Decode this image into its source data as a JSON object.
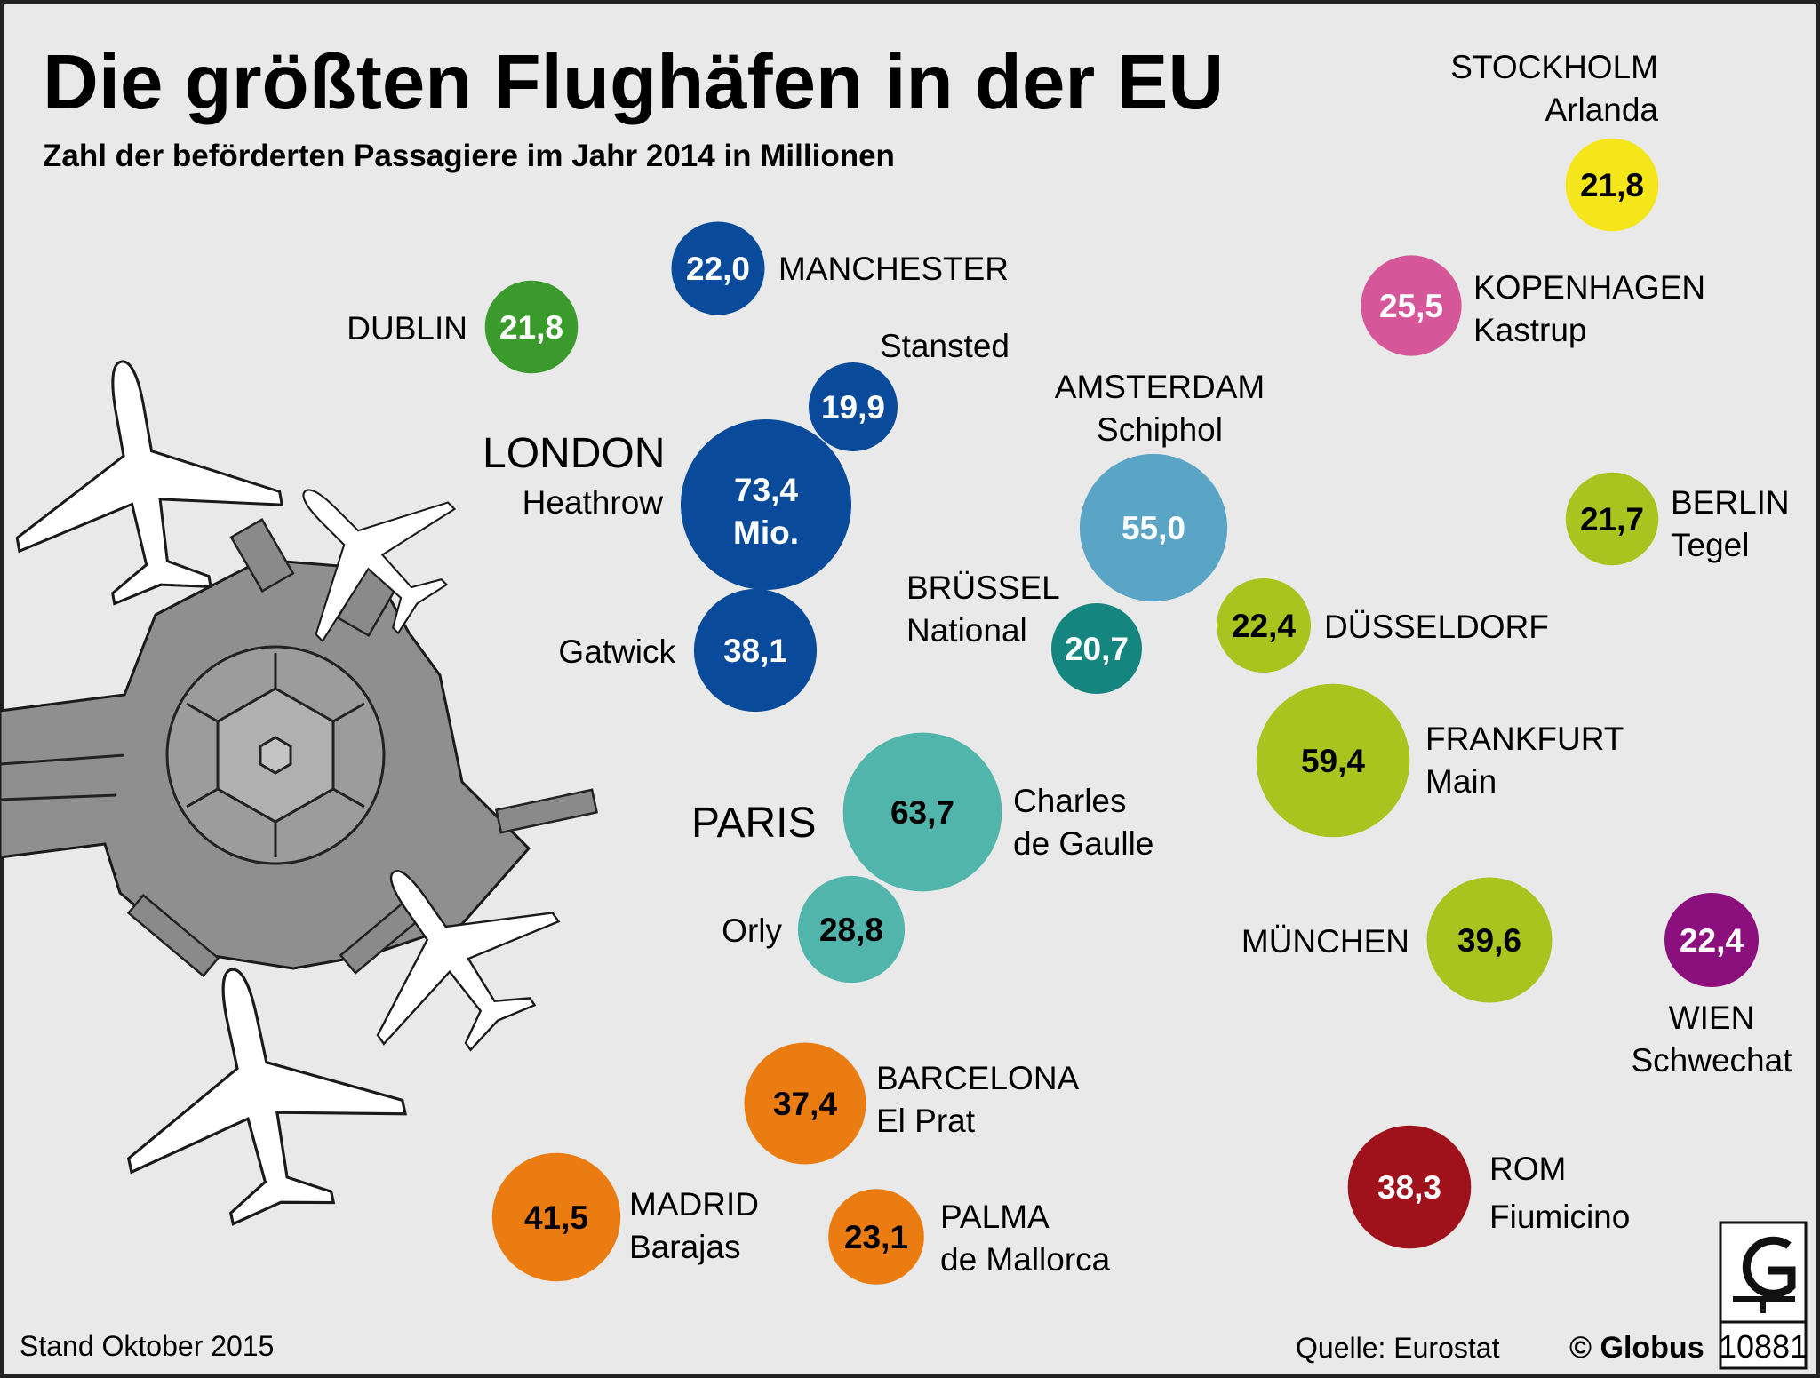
{
  "title": "Die größten Flughäfen in der EU",
  "subtitle": "Zahl der beförderten Passagiere im Jahr 2014 in Millionen",
  "footer": {
    "stand": "Stand Oktober 2015",
    "source": "Quelle: Eurostat",
    "publisher": "© Globus",
    "number": "10881"
  },
  "logo_icon": "globus-logo-icon",
  "chart_data": {
    "type": "bubble",
    "title": "Die größten Flughäfen in der EU",
    "subtitle": "Zahl der beförderten Passagiere im Jahr 2014 in Millionen",
    "unit": "Millionen Passagiere",
    "city_headings": [
      "LONDON",
      "PARIS"
    ],
    "airports": [
      {
        "id": "stockholm",
        "value": 21.8,
        "value_label": "21,8",
        "lines": [
          "STOCKHOLM",
          "Arlanda"
        ],
        "color": "#f5e61c",
        "text_color": "#000000"
      },
      {
        "id": "kopenhagen",
        "value": 25.5,
        "value_label": "25,5",
        "lines": [
          "KOPENHAGEN",
          "Kastrup"
        ],
        "color": "#d6569a",
        "text_color": "#ffffff"
      },
      {
        "id": "manchester",
        "value": 22.0,
        "value_label": "22,0",
        "lines": [
          "MANCHESTER"
        ],
        "color": "#0a4a9b",
        "text_color": "#ffffff"
      },
      {
        "id": "dublin",
        "value": 21.8,
        "value_label": "21,8",
        "lines": [
          "DUBLIN"
        ],
        "color": "#3a9a2c",
        "text_color": "#ffffff"
      },
      {
        "id": "stansted",
        "value": 19.9,
        "value_label": "19,9",
        "lines": [
          "Stansted"
        ],
        "color": "#0a4a9b",
        "text_color": "#ffffff"
      },
      {
        "id": "heathrow",
        "value": 73.4,
        "value_label": "73,4",
        "extra_label": "Mio.",
        "lines": [
          "Heathrow"
        ],
        "color": "#0a4a9b",
        "text_color": "#ffffff"
      },
      {
        "id": "gatwick",
        "value": 38.1,
        "value_label": "38,1",
        "lines": [
          "Gatwick"
        ],
        "color": "#0a4a9b",
        "text_color": "#ffffff"
      },
      {
        "id": "amsterdam",
        "value": 55.0,
        "value_label": "55,0",
        "lines": [
          "AMSTERDAM",
          "Schiphol"
        ],
        "color": "#5aa4c6",
        "text_color": "#ffffff"
      },
      {
        "id": "bruessel",
        "value": 20.7,
        "value_label": "20,7",
        "lines": [
          "BRÜSSEL",
          "National"
        ],
        "color": "#14867f",
        "text_color": "#ffffff"
      },
      {
        "id": "berlin",
        "value": 21.7,
        "value_label": "21,7",
        "lines": [
          "BERLIN",
          "Tegel"
        ],
        "color": "#a9c41f",
        "text_color": "#000000"
      },
      {
        "id": "duesseldorf",
        "value": 22.4,
        "value_label": "22,4",
        "lines": [
          "DÜSSELDORF"
        ],
        "color": "#a9c41f",
        "text_color": "#000000"
      },
      {
        "id": "frankfurt",
        "value": 59.4,
        "value_label": "59,4",
        "lines": [
          "FRANKFURT",
          "Main"
        ],
        "color": "#a9c41f",
        "text_color": "#000000"
      },
      {
        "id": "charles-de-gaulle",
        "value": 63.7,
        "value_label": "63,7",
        "lines": [
          "Charles",
          "de Gaulle"
        ],
        "color": "#52b5ab",
        "text_color": "#000000"
      },
      {
        "id": "orly",
        "value": 28.8,
        "value_label": "28,8",
        "lines": [
          "Orly"
        ],
        "color": "#52b5ab",
        "text_color": "#000000"
      },
      {
        "id": "muenchen",
        "value": 39.6,
        "value_label": "39,6",
        "lines": [
          "MÜNCHEN"
        ],
        "color": "#a9c41f",
        "text_color": "#000000"
      },
      {
        "id": "wien",
        "value": 22.4,
        "value_label": "22,4",
        "lines": [
          "WIEN",
          "Schwechat"
        ],
        "color": "#8c0f7e",
        "text_color": "#ffffff"
      },
      {
        "id": "barcelona",
        "value": 37.4,
        "value_label": "37,4",
        "lines": [
          "BARCELONA",
          "El Prat"
        ],
        "color": "#ea7c11",
        "text_color": "#000000"
      },
      {
        "id": "madrid",
        "value": 41.5,
        "value_label": "41,5",
        "lines": [
          "MADRID",
          "Barajas"
        ],
        "color": "#ea7c11",
        "text_color": "#000000"
      },
      {
        "id": "palma",
        "value": 23.1,
        "value_label": "23,1",
        "lines": [
          "PALMA",
          "de Mallorca"
        ],
        "color": "#ea7c11",
        "text_color": "#000000"
      },
      {
        "id": "rom",
        "value": 38.3,
        "value_label": "38,3",
        "lines": [
          "ROM",
          "Fiumicino"
        ],
        "color": "#a0121b",
        "text_color": "#ffffff"
      }
    ]
  }
}
